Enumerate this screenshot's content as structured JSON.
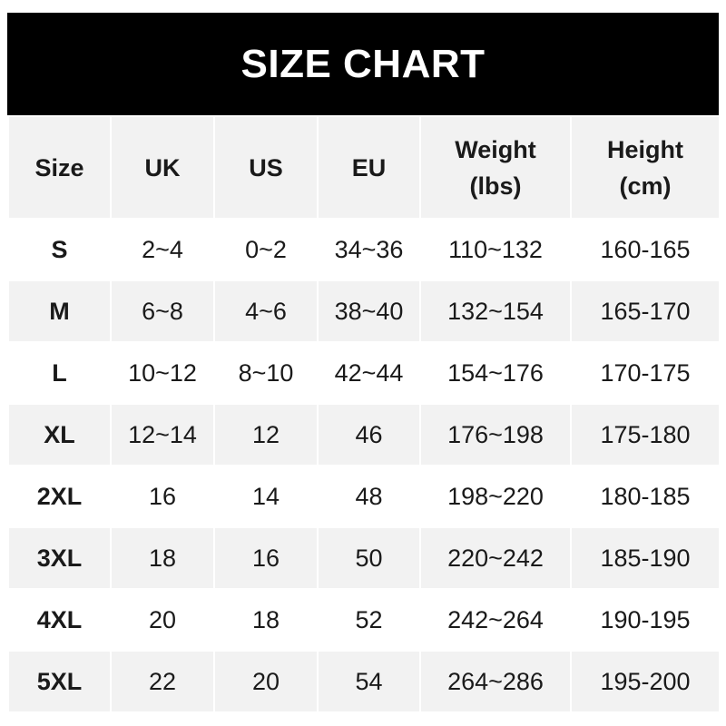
{
  "title": "SIZE CHART",
  "headers": [
    "Size",
    "UK",
    "US",
    "EU",
    "Weight\n(lbs)",
    "Height\n(cm)"
  ],
  "rows": [
    [
      "S",
      "2~4",
      "0~2",
      "34~36",
      "110~132",
      "160-165"
    ],
    [
      "M",
      "6~8",
      "4~6",
      "38~40",
      "132~154",
      "165-170"
    ],
    [
      "L",
      "10~12",
      "8~10",
      "42~44",
      "154~176",
      "170-175"
    ],
    [
      "XL",
      "12~14",
      "12",
      "46",
      "176~198",
      "175-180"
    ],
    [
      "2XL",
      "16",
      "14",
      "48",
      "198~220",
      "180-185"
    ],
    [
      "3XL",
      "18",
      "16",
      "50",
      "220~242",
      "185-190"
    ],
    [
      "4XL",
      "20",
      "18",
      "52",
      "242~264",
      "190-195"
    ],
    [
      "5XL",
      "22",
      "20",
      "54",
      "264~286",
      "195-200"
    ]
  ],
  "colors": {
    "title_bg": "#000000",
    "header_bg": "#f2f2f2",
    "stripe": "#f2f2f2"
  }
}
